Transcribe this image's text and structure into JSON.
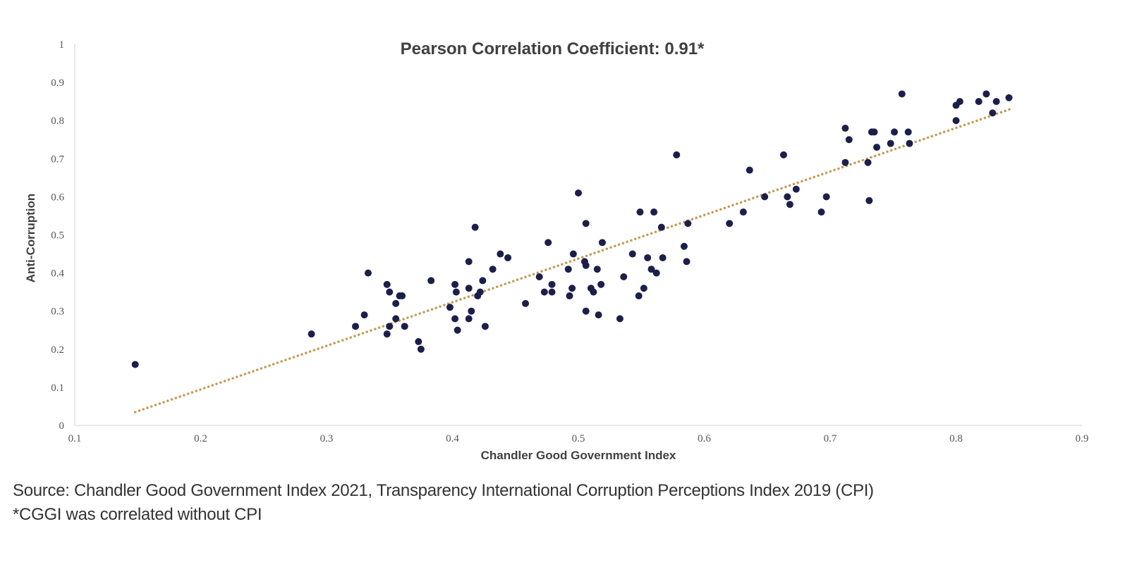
{
  "chart_data": {
    "type": "scatter",
    "title": "Pearson Correlation Coefficient: 0.91*",
    "xlabel": "Chandler Good Government Index",
    "ylabel": "Anti-Corruption",
    "xlim": [
      0.1,
      0.9
    ],
    "ylim": [
      0,
      1
    ],
    "x_ticks": [
      "0.1",
      "0.2",
      "0.3",
      "0.4",
      "0.5",
      "0.6",
      "0.7",
      "0.8",
      "0.9"
    ],
    "y_ticks": [
      "0",
      "0.1",
      "0.2",
      "0.3",
      "0.4",
      "0.5",
      "0.6",
      "0.7",
      "0.8",
      "0.9",
      "1"
    ],
    "grid": false,
    "point_color": "#1c1f4a",
    "trendline": {
      "style": "dotted",
      "color": "#c49a55",
      "x": [
        0.148,
        0.843
      ],
      "y": [
        0.035,
        0.83
      ]
    },
    "points": [
      [
        0.148,
        0.16
      ],
      [
        0.288,
        0.24
      ],
      [
        0.323,
        0.26
      ],
      [
        0.33,
        0.29
      ],
      [
        0.333,
        0.4
      ],
      [
        0.348,
        0.37
      ],
      [
        0.348,
        0.24
      ],
      [
        0.35,
        0.26
      ],
      [
        0.35,
        0.35
      ],
      [
        0.355,
        0.32
      ],
      [
        0.355,
        0.28
      ],
      [
        0.358,
        0.34
      ],
      [
        0.36,
        0.34
      ],
      [
        0.362,
        0.26
      ],
      [
        0.373,
        0.22
      ],
      [
        0.375,
        0.2
      ],
      [
        0.383,
        0.38
      ],
      [
        0.398,
        0.31
      ],
      [
        0.402,
        0.37
      ],
      [
        0.402,
        0.28
      ],
      [
        0.403,
        0.35
      ],
      [
        0.404,
        0.25
      ],
      [
        0.413,
        0.43
      ],
      [
        0.413,
        0.36
      ],
      [
        0.413,
        0.28
      ],
      [
        0.415,
        0.3
      ],
      [
        0.418,
        0.52
      ],
      [
        0.42,
        0.34
      ],
      [
        0.422,
        0.35
      ],
      [
        0.424,
        0.38
      ],
      [
        0.426,
        0.26
      ],
      [
        0.432,
        0.41
      ],
      [
        0.438,
        0.45
      ],
      [
        0.444,
        0.44
      ],
      [
        0.458,
        0.32
      ],
      [
        0.469,
        0.39
      ],
      [
        0.473,
        0.35
      ],
      [
        0.476,
        0.48
      ],
      [
        0.479,
        0.37
      ],
      [
        0.479,
        0.35
      ],
      [
        0.492,
        0.41
      ],
      [
        0.493,
        0.34
      ],
      [
        0.495,
        0.36
      ],
      [
        0.496,
        0.45
      ],
      [
        0.5,
        0.61
      ],
      [
        0.505,
        0.43
      ],
      [
        0.506,
        0.53
      ],
      [
        0.506,
        0.42
      ],
      [
        0.506,
        0.3
      ],
      [
        0.51,
        0.36
      ],
      [
        0.512,
        0.35
      ],
      [
        0.515,
        0.41
      ],
      [
        0.516,
        0.29
      ],
      [
        0.518,
        0.37
      ],
      [
        0.519,
        0.48
      ],
      [
        0.533,
        0.28
      ],
      [
        0.536,
        0.39
      ],
      [
        0.543,
        0.45
      ],
      [
        0.548,
        0.34
      ],
      [
        0.549,
        0.56
      ],
      [
        0.552,
        0.36
      ],
      [
        0.555,
        0.44
      ],
      [
        0.558,
        0.41
      ],
      [
        0.56,
        0.56
      ],
      [
        0.562,
        0.4
      ],
      [
        0.566,
        0.52
      ],
      [
        0.567,
        0.44
      ],
      [
        0.578,
        0.71
      ],
      [
        0.584,
        0.47
      ],
      [
        0.586,
        0.43
      ],
      [
        0.587,
        0.53
      ],
      [
        0.62,
        0.53
      ],
      [
        0.631,
        0.56
      ],
      [
        0.636,
        0.67
      ],
      [
        0.648,
        0.6
      ],
      [
        0.663,
        0.71
      ],
      [
        0.666,
        0.6
      ],
      [
        0.668,
        0.58
      ],
      [
        0.673,
        0.62
      ],
      [
        0.693,
        0.56
      ],
      [
        0.697,
        0.6
      ],
      [
        0.712,
        0.78
      ],
      [
        0.712,
        0.69
      ],
      [
        0.715,
        0.75
      ],
      [
        0.73,
        0.69
      ],
      [
        0.731,
        0.59
      ],
      [
        0.733,
        0.77
      ],
      [
        0.735,
        0.77
      ],
      [
        0.737,
        0.73
      ],
      [
        0.748,
        0.74
      ],
      [
        0.751,
        0.77
      ],
      [
        0.757,
        0.87
      ],
      [
        0.762,
        0.77
      ],
      [
        0.763,
        0.74
      ],
      [
        0.8,
        0.8
      ],
      [
        0.8,
        0.84
      ],
      [
        0.803,
        0.85
      ],
      [
        0.818,
        0.85
      ],
      [
        0.824,
        0.87
      ],
      [
        0.829,
        0.82
      ],
      [
        0.832,
        0.85
      ],
      [
        0.842,
        0.86
      ]
    ]
  },
  "source_text": "Source: Chandler Good Government Index 2021, Transparency International Corruption Perceptions Index 2019 (CPI)",
  "note_text": "*CGGI was correlated without CPI"
}
